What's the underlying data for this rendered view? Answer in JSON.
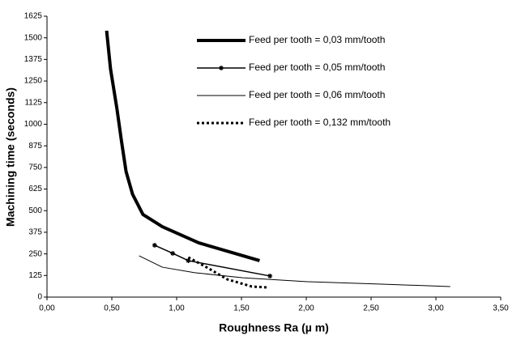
{
  "chart_data": {
    "type": "line",
    "xlabel": "Roughness Ra (µ m)",
    "ylabel": "Machining time (seconds)",
    "xlim": [
      0,
      3.5
    ],
    "xticks": [
      {
        "value": 0,
        "label": "0,00"
      },
      {
        "value": 0.5,
        "label": "0,50"
      },
      {
        "value": 1,
        "label": "1,00"
      },
      {
        "value": 1.5,
        "label": "1,50"
      },
      {
        "value": 2,
        "label": "2,00"
      },
      {
        "value": 2.5,
        "label": "2,50"
      },
      {
        "value": 3,
        "label": "3,00"
      },
      {
        "value": 3.5,
        "label": "3,50"
      }
    ],
    "ylim": [
      0,
      1625
    ],
    "yticks": [
      0,
      125,
      250,
      375,
      500,
      625,
      750,
      875,
      1000,
      1125,
      1250,
      1375,
      1500,
      1625
    ],
    "grid": false,
    "legend": "upper right",
    "series": [
      {
        "name": "Feed per tooth = 0,03 mm/tooth",
        "color": "#000000",
        "line_width": 4,
        "dash": "solid",
        "marker": "none",
        "x": [
          0.46,
          0.49,
          0.54,
          0.575,
          0.61,
          0.66,
          0.74,
          0.89,
          1.17,
          1.64
        ],
        "values": [
          1541,
          1320,
          1087,
          900,
          726,
          595,
          478,
          407,
          314,
          211
        ]
      },
      {
        "name": "Feed per tooth = 0,05 mm/tooth",
        "color": "#000000",
        "line_width": 1.5,
        "dash": "solid",
        "marker": "star",
        "x": [
          0.83,
          0.97,
          1.09,
          1.72
        ],
        "values": [
          300,
          253,
          211,
          122
        ]
      },
      {
        "name": "Feed per tooth = 0,06 mm/tooth",
        "color": "#000000",
        "line_width": 1,
        "dash": "solid",
        "marker": "none",
        "x": [
          0.71,
          0.89,
          1.14,
          1.51,
          2.01,
          2.58,
          3.11
        ],
        "values": [
          239,
          173,
          141,
          112,
          89,
          75,
          61
        ]
      },
      {
        "name": "Feed per tooth = 0,132 mm/tooth",
        "color": "#000000",
        "line_width": 3,
        "dash": "dotted",
        "marker": "none",
        "x": [
          1.09,
          1.23,
          1.39,
          1.58,
          1.7
        ],
        "values": [
          230,
          173,
          103,
          61,
          56
        ]
      }
    ]
  }
}
